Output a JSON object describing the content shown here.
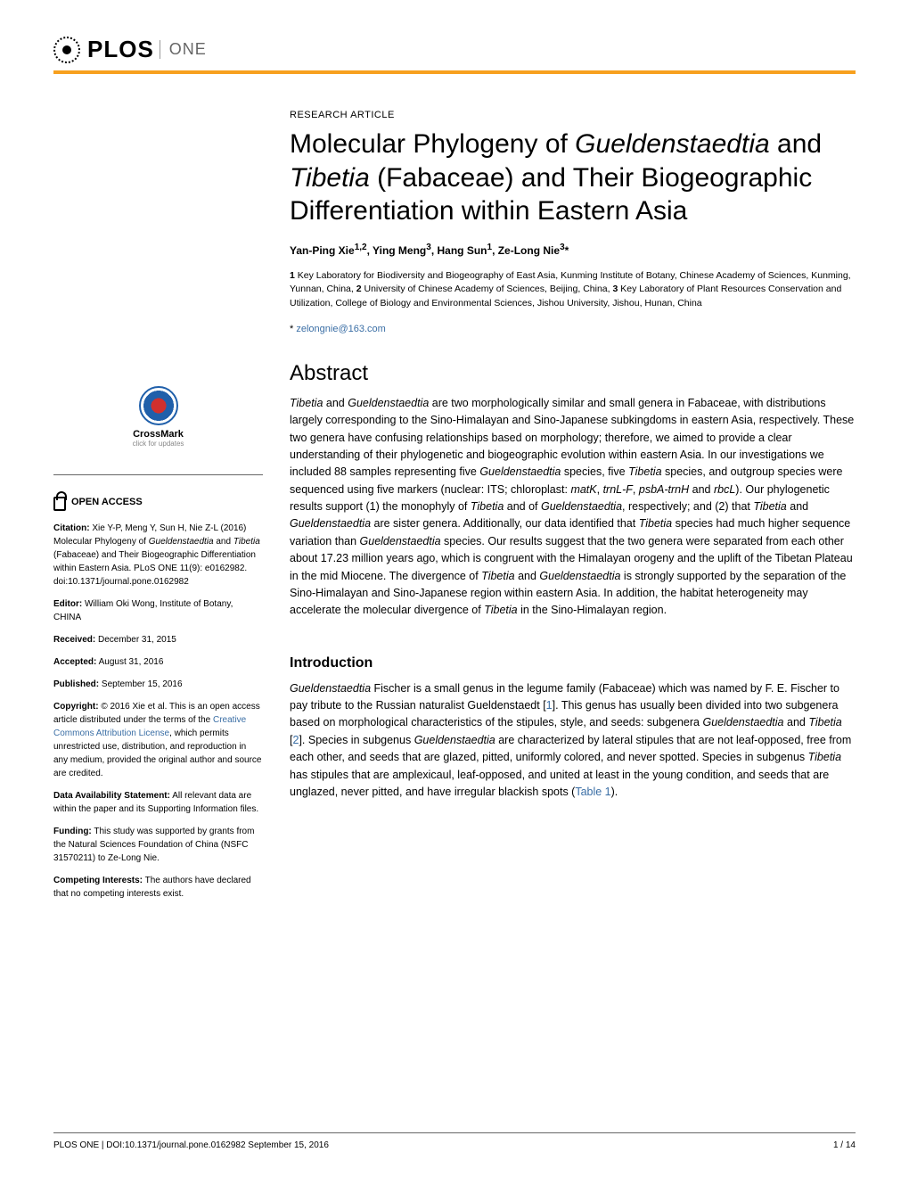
{
  "header": {
    "logo_main": "PLOS",
    "logo_sub": "ONE"
  },
  "colors": {
    "accent_orange": "#f7a01e",
    "link_blue": "#3a6ea5",
    "text_gray": "#666666"
  },
  "article": {
    "type": "RESEARCH ARTICLE",
    "title_html": "Molecular Phylogeny of <span class='italic'>Gueldenstaedtia</span> and <span class='italic'>Tibetia</span> (Fabaceae) and Their Biogeographic Differentiation within Eastern Asia",
    "authors_html": "Yan-Ping Xie<sup>1,2</sup>, Ying Meng<sup>3</sup>, Hang Sun<sup>1</sup>, Ze-Long Nie<sup>3</sup>*",
    "affiliations_html": "<b>1</b> Key Laboratory for Biodiversity and Biogeography of East Asia, Kunming Institute of Botany, Chinese Academy of Sciences, Kunming, Yunnan, China, <b>2</b> University of Chinese Academy of Sciences, Beijing, China, <b>3</b> Key Laboratory of Plant Resources Conservation and Utilization, College of Biology and Environmental Sciences, Jishou University, Jishou, Hunan, China",
    "corresponding_prefix": "* ",
    "corresponding_email": "zelongnie@163.com"
  },
  "crossmark": {
    "label": "CrossMark",
    "sublabel": "click for updates"
  },
  "open_access": {
    "label": "OPEN ACCESS"
  },
  "sidebar": {
    "citation_label": "Citation:",
    "citation_text_html": " Xie Y-P, Meng Y, Sun H, Nie Z-L (2016) Molecular Phylogeny of <span class='italic'>Gueldenstaedtia</span> and <span class='italic'>Tibetia</span> (Fabaceae) and Their Biogeographic Differentiation within Eastern Asia. PLoS ONE 11(9): e0162982. doi:10.1371/journal.pone.0162982",
    "editor_label": "Editor:",
    "editor_text": " William Oki Wong, Institute of Botany, CHINA",
    "received_label": "Received:",
    "received_text": " December 31, 2015",
    "accepted_label": "Accepted:",
    "accepted_text": " August 31, 2016",
    "published_label": "Published:",
    "published_text": " September 15, 2016",
    "copyright_label": "Copyright:",
    "copyright_text_html": " © 2016 Xie et al. This is an open access article distributed under the terms of the <span class='link'>Creative Commons Attribution License</span>, which permits unrestricted use, distribution, and reproduction in any medium, provided the original author and source are credited.",
    "data_label": "Data Availability Statement:",
    "data_text": " All relevant data are within the paper and its Supporting Information files.",
    "funding_label": "Funding:",
    "funding_text": " This study was supported by grants from the Natural Sciences Foundation of China (NSFC 31570211) to Ze-Long Nie.",
    "competing_label": "Competing Interests:",
    "competing_text": " The authors have declared that no competing interests exist."
  },
  "abstract": {
    "heading": "Abstract",
    "text_html": "<span class='italic'>Tibetia</span> and <span class='italic'>Gueldenstaedtia</span> are two morphologically similar and small genera in Fabaceae, with distributions largely corresponding to the Sino-Himalayan and Sino-Japanese subkingdoms in eastern Asia, respectively. These two genera have confusing relationships based on morphology; therefore, we aimed to provide a clear understanding of their phylogenetic and biogeographic evolution within eastern Asia. In our investigations we included 88 samples representing five <span class='italic'>Gueldenstaedtia</span> species, five <span class='italic'>Tibetia</span> species, and outgroup species were sequenced using five markers (nuclear: ITS; chloroplast: <span class='italic'>matK</span>, <span class='italic'>trnL-F</span>, <span class='italic'>psbA-trnH</span> and <span class='italic'>rbcL</span>). Our phylogenetic results support (1) the monophyly of <span class='italic'>Tibetia</span> and of <span class='italic'>Gueldenstaedtia</span>, respectively; and (2) that <span class='italic'>Tibetia</span> and <span class='italic'>Gueldenstaedtia</span> are sister genera. Additionally, our data identified that <span class='italic'>Tibetia</span> species had much higher sequence variation than <span class='italic'>Gueldenstaedtia</span> species. Our results suggest that the two genera were separated from each other about 17.23 million years ago, which is congruent with the Himalayan orogeny and the uplift of the Tibetan Plateau in the mid Miocene. The divergence of <span class='italic'>Tibetia</span> and <span class='italic'>Gueldenstaedtia</span> is strongly supported by the separation of the Sino-Himalayan and Sino-Japanese region within eastern Asia. In addition, the habitat heterogeneity may accelerate the molecular divergence of <span class='italic'>Tibetia</span> in the Sino-Himalayan region."
  },
  "introduction": {
    "heading": "Introduction",
    "text_html": "<span class='italic'>Gueldenstaedtia</span> Fischer is a small genus in the legume family (Fabaceae) which was named by F. E. Fischer to pay tribute to the Russian naturalist Gueldenstaedt [<span class='link'>1</span>]. This genus has usually been divided into two subgenera based on morphological characteristics of the stipules, style, and seeds: subgenera <span class='italic'>Gueldenstaedtia</span> and <span class='italic'>Tibetia</span> [<span class='link'>2</span>]. Species in subgenus <span class='italic'>Gueldenstaedtia</span> are characterized by lateral stipules that are not leaf-opposed, free from each other, and seeds that are glazed, pitted, uniformly colored, and never spotted. Species in subgenus <span class='italic'>Tibetia</span> has stipules that are amplexicaul, leaf-opposed, and united at least in the young condition, and seeds that are unglazed, never pitted, and have irregular blackish spots (<span class='link'>Table 1</span>)."
  },
  "footer": {
    "left": "PLOS ONE | DOI:10.1371/journal.pone.0162982    September 15, 2016",
    "right": "1 / 14"
  }
}
